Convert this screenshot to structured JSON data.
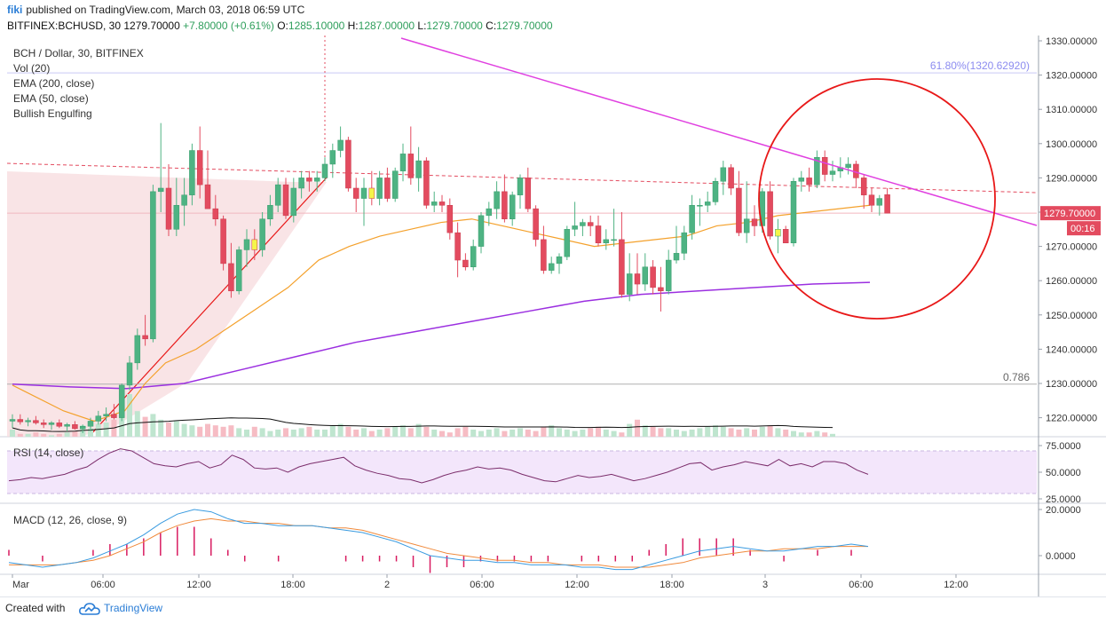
{
  "header": {
    "user": "fiki",
    "published": "published on TradingView.com, March 03, 2018 06:59 UTC",
    "symbol": "BITFINEX:BCHUSD, 30",
    "last": "1279.70000",
    "change": "+7.80000 (+0.61%)",
    "o_label": "O:",
    "o": "1285.10000",
    "h_label": "H:",
    "h": "1287.00000",
    "l_label": "L:",
    "l": "1279.70000",
    "c_label": "C:",
    "c": "1279.70000"
  },
  "legend": {
    "title": "BCH / Dollar, 30, BITFINEX",
    "vol": "Vol (20)",
    "ema200": "EMA (200, close)",
    "ema50": "EMA (50, close)",
    "pattern": "Bullish Engulfing"
  },
  "rsi_label": "RSI (14, close)",
  "macd_label": "MACD (12, 26, close, 9)",
  "footer": {
    "created": "Created with",
    "brand": "TradingView"
  },
  "colors": {
    "up": "#4eb383",
    "down": "#e34b5f",
    "highlight": "#f5f54a",
    "ema50": "#f4a12c",
    "ema200": "#9b2fe0",
    "trendline": "#e040e0",
    "circle": "#e81818",
    "rsi": "#7b2d6b",
    "macd": "#3a9be0",
    "signal": "#f08a3c",
    "fib": "#8c8cf0",
    "price_label_bg": "#e34b5f"
  },
  "chart_data": {
    "type": "candlestick",
    "symbol": "BITFINEX:BCHUSD",
    "timeframe": "30",
    "ylim": [
      1216,
      1331
    ],
    "y_ticks": [
      "1330.00000",
      "1320.00000",
      "1310.00000",
      "1300.00000",
      "1290.00000",
      "1280.00000",
      "1270.00000",
      "1260.00000",
      "1250.00000",
      "1240.00000",
      "1230.00000",
      "1220.00000"
    ],
    "x_ticks": [
      "Mar",
      "06:00",
      "12:00",
      "18:00",
      "2",
      "06:00",
      "12:00",
      "18:00",
      "3",
      "06:00",
      "12:00"
    ],
    "last_price_label": "1279.70000",
    "countdown_label": "00:16",
    "fib_label": "61.80%(1320.62920)",
    "fib_level": 1320.6292,
    "fib_786_label": "0.786",
    "fib_786_level": 1229.8,
    "candles": [
      [
        1219,
        1221,
        1217,
        1219.5
      ],
      [
        1219.5,
        1221,
        1218,
        1218.8
      ],
      [
        1218.8,
        1220,
        1217.5,
        1219.2
      ],
      [
        1219.2,
        1220.5,
        1218,
        1218.5
      ],
      [
        1218.5,
        1219.5,
        1217,
        1218
      ],
      [
        1218,
        1219,
        1216.5,
        1218.5
      ],
      [
        1218.5,
        1219.5,
        1217,
        1217.5
      ],
      [
        1217.5,
        1218.5,
        1216,
        1218
      ],
      [
        1218,
        1219,
        1216.5,
        1216.8
      ],
      [
        1216.8,
        1218,
        1215.5,
        1217.5
      ],
      [
        1217.5,
        1220,
        1216,
        1219
      ],
      [
        1219,
        1222,
        1218,
        1220.5
      ],
      [
        1220.5,
        1223,
        1219,
        1221
      ],
      [
        1221,
        1224,
        1219.5,
        1220
      ],
      [
        1220,
        1230,
        1219,
        1229.5
      ],
      [
        1229.5,
        1238,
        1228,
        1236
      ],
      [
        1236,
        1246,
        1234,
        1244
      ],
      [
        1244,
        1250,
        1241,
        1243
      ],
      [
        1243,
        1288,
        1242,
        1286
      ],
      [
        1286,
        1306,
        1280,
        1287
      ],
      [
        1287,
        1294,
        1273,
        1275
      ],
      [
        1275,
        1290,
        1273,
        1282
      ],
      [
        1282,
        1290,
        1276,
        1285
      ],
      [
        1285,
        1300,
        1282,
        1298
      ],
      [
        1298,
        1305,
        1284,
        1288
      ],
      [
        1288,
        1298,
        1281,
        1281
      ],
      [
        1281,
        1285,
        1276,
        1278
      ],
      [
        1278,
        1279,
        1263,
        1265
      ],
      [
        1265,
        1271,
        1255,
        1257
      ],
      [
        1257,
        1270,
        1256,
        1269
      ],
      [
        1269,
        1275,
        1264,
        1272
      ],
      [
        1272,
        1275,
        1266,
        1269
      ],
      [
        1269,
        1280,
        1267,
        1278
      ],
      [
        1278,
        1285,
        1276,
        1282
      ],
      [
        1282,
        1290,
        1280,
        1288
      ],
      [
        1288,
        1290,
        1278,
        1279
      ],
      [
        1279,
        1290,
        1277,
        1287
      ],
      [
        1287,
        1292,
        1284,
        1290
      ],
      [
        1290,
        1292,
        1286,
        1289
      ],
      [
        1289,
        1292,
        1286,
        1290
      ],
      [
        1290,
        1296,
        1289,
        1294
      ],
      [
        1294,
        1300,
        1290,
        1298
      ],
      [
        1298,
        1305,
        1296,
        1301
      ],
      [
        1301,
        1302,
        1286,
        1287
      ],
      [
        1287,
        1290,
        1280,
        1284
      ],
      [
        1284,
        1290,
        1276,
        1287
      ],
      [
        1287,
        1292,
        1282,
        1284
      ],
      [
        1284,
        1292,
        1282,
        1290
      ],
      [
        1290,
        1293,
        1283,
        1284
      ],
      [
        1284,
        1293,
        1283,
        1292
      ],
      [
        1292,
        1300,
        1289,
        1297
      ],
      [
        1297,
        1305,
        1288,
        1290
      ],
      [
        1290,
        1299,
        1286,
        1295
      ],
      [
        1295,
        1296,
        1281,
        1282
      ],
      [
        1282,
        1286,
        1280,
        1283
      ],
      [
        1283,
        1285,
        1280,
        1282
      ],
      [
        1282,
        1284,
        1272,
        1274
      ],
      [
        1274,
        1277,
        1261,
        1266
      ],
      [
        1266,
        1268,
        1263,
        1264
      ],
      [
        1264,
        1272,
        1263,
        1270
      ],
      [
        1270,
        1280,
        1268,
        1279
      ],
      [
        1279,
        1283,
        1276,
        1281
      ],
      [
        1281,
        1289,
        1278,
        1286
      ],
      [
        1286,
        1291,
        1277,
        1278
      ],
      [
        1278,
        1286,
        1276,
        1285
      ],
      [
        1285,
        1291,
        1281,
        1290
      ],
      [
        1290,
        1293,
        1280,
        1281
      ],
      [
        1281,
        1282,
        1270,
        1272
      ],
      [
        1272,
        1276,
        1262,
        1263
      ],
      [
        1263,
        1267,
        1262,
        1265
      ],
      [
        1265,
        1268,
        1262,
        1267
      ],
      [
        1267,
        1276,
        1266,
        1275
      ],
      [
        1275,
        1283,
        1273,
        1276
      ],
      [
        1276,
        1278,
        1273,
        1277
      ],
      [
        1277,
        1279,
        1273,
        1276
      ],
      [
        1276,
        1279,
        1270,
        1271
      ],
      [
        1271,
        1275,
        1269,
        1272
      ],
      [
        1272,
        1281,
        1270,
        1272
      ],
      [
        1272,
        1280,
        1255,
        1256
      ],
      [
        1256,
        1268,
        1254,
        1262
      ],
      [
        1262,
        1268,
        1256,
        1259
      ],
      [
        1259,
        1268,
        1257,
        1264
      ],
      [
        1264,
        1266,
        1256,
        1258
      ],
      [
        1258,
        1264,
        1251,
        1257
      ],
      [
        1257,
        1269,
        1256,
        1266
      ],
      [
        1266,
        1276,
        1265,
        1268
      ],
      [
        1268,
        1276,
        1266,
        1274
      ],
      [
        1274,
        1285,
        1272,
        1282
      ],
      [
        1282,
        1284,
        1276,
        1282
      ],
      [
        1282,
        1286,
        1280,
        1283
      ],
      [
        1283,
        1290,
        1282,
        1289
      ],
      [
        1289,
        1295,
        1285,
        1293
      ],
      [
        1293,
        1294,
        1285,
        1287
      ],
      [
        1287,
        1292,
        1273,
        1274
      ],
      [
        1274,
        1289,
        1271,
        1278
      ],
      [
        1278,
        1282,
        1273,
        1276
      ],
      [
        1276,
        1287,
        1274,
        1286
      ],
      [
        1286,
        1289,
        1272,
        1273
      ],
      [
        1273,
        1278,
        1268,
        1275
      ],
      [
        1275,
        1276,
        1271,
        1271
      ],
      [
        1271,
        1290,
        1270,
        1289
      ],
      [
        1289,
        1292,
        1286,
        1290
      ],
      [
        1290,
        1293,
        1286,
        1288
      ],
      [
        1288,
        1298,
        1287,
        1296
      ],
      [
        1296,
        1298,
        1289,
        1291
      ],
      [
        1291,
        1295,
        1289,
        1292
      ],
      [
        1292,
        1296,
        1290,
        1293
      ],
      [
        1293,
        1296,
        1291,
        1294
      ],
      [
        1294,
        1295,
        1287,
        1290
      ],
      [
        1290,
        1291,
        1281,
        1285
      ],
      [
        1285,
        1287,
        1280,
        1282
      ],
      [
        1282,
        1285,
        1279,
        1284
      ],
      [
        1285.1,
        1287,
        1279.7,
        1279.7
      ]
    ],
    "highlighted_candle_indices": [
      31,
      46,
      98
    ],
    "ema50": [
      [
        0,
        1229.5
      ],
      [
        10,
        1222
      ],
      [
        16,
        1219
      ],
      [
        22,
        1222
      ],
      [
        26,
        1230
      ],
      [
        30,
        1236
      ],
      [
        36,
        1240
      ],
      [
        42,
        1246
      ],
      [
        48,
        1252
      ],
      [
        54,
        1258
      ],
      [
        60,
        1266
      ],
      [
        66,
        1270
      ],
      [
        72,
        1273
      ],
      [
        78,
        1275
      ],
      [
        84,
        1277
      ],
      [
        90,
        1278
      ],
      [
        96,
        1276
      ],
      [
        102,
        1274
      ],
      [
        108,
        1272
      ],
      [
        114,
        1270
      ],
      [
        120,
        1271
      ],
      [
        126,
        1272
      ],
      [
        132,
        1273
      ],
      [
        138,
        1276
      ],
      [
        144,
        1277
      ],
      [
        150,
        1279
      ],
      [
        156,
        1280
      ],
      [
        162,
        1281
      ],
      [
        168,
        1282
      ]
    ],
    "ema200": [
      [
        0,
        1229.8
      ],
      [
        20,
        1229
      ],
      [
        40,
        1228.5
      ],
      [
        60,
        1230
      ],
      [
        80,
        1234
      ],
      [
        100,
        1238
      ],
      [
        120,
        1242
      ],
      [
        140,
        1245
      ],
      [
        160,
        1248
      ],
      [
        180,
        1251
      ],
      [
        200,
        1254
      ],
      [
        220,
        1256
      ],
      [
        240,
        1257
      ],
      [
        260,
        1258
      ],
      [
        280,
        1259
      ],
      [
        300,
        1259.5
      ]
    ],
    "volume": [
      5,
      2,
      2,
      3,
      2,
      1,
      2,
      3,
      4,
      8,
      6,
      9,
      10,
      12,
      28,
      30,
      18,
      14,
      16,
      12,
      10,
      11,
      9,
      8,
      7,
      9,
      8,
      7,
      8,
      6,
      5,
      7,
      6,
      4,
      5,
      6,
      5,
      6,
      7,
      5,
      5,
      8,
      9,
      7,
      5,
      6,
      4,
      5,
      6,
      7,
      8,
      6,
      9,
      7,
      5,
      4,
      3,
      6,
      7,
      5,
      4,
      5,
      6,
      4,
      5,
      6,
      5,
      4,
      7,
      8,
      6,
      5,
      4,
      5,
      6,
      7,
      5,
      4,
      3,
      9,
      12,
      8,
      7,
      6,
      6,
      5,
      4,
      5,
      6,
      7,
      8,
      7,
      6,
      5,
      6,
      5,
      7,
      8,
      6,
      5,
      4,
      3,
      3,
      4,
      3,
      2
    ],
    "rsi": [
      42,
      43,
      45,
      44,
      46,
      48,
      52,
      55,
      62,
      68,
      72,
      70,
      64,
      58,
      56,
      55,
      58,
      60,
      54,
      57,
      66,
      62,
      54,
      53,
      54,
      50,
      55,
      58,
      60,
      62,
      64,
      56,
      52,
      49,
      47,
      44,
      43,
      40,
      43,
      47,
      50,
      52,
      55,
      53,
      54,
      52,
      48,
      45,
      42,
      41,
      44,
      47,
      45,
      46,
      48,
      45,
      42,
      44,
      47,
      50,
      54,
      58,
      59,
      52,
      55,
      57,
      60,
      58,
      56,
      62,
      56,
      58,
      55,
      60,
      60,
      58,
      52,
      48
    ],
    "macd": [
      -3,
      -4,
      -5,
      -4,
      -3,
      -1,
      2,
      5,
      9,
      14,
      18,
      20,
      19,
      16,
      14,
      14,
      13,
      13,
      13,
      12,
      11,
      10,
      8,
      6,
      3,
      0,
      -1,
      -2,
      -2,
      -3,
      -3,
      -4,
      -4,
      -4,
      -5,
      -5,
      -6,
      -6,
      -4,
      -2,
      0,
      2,
      3,
      4,
      3,
      2,
      2,
      3,
      4,
      4,
      5,
      4
    ],
    "signal": [
      -4,
      -4,
      -4,
      -4,
      -3,
      -2,
      0,
      3,
      6,
      10,
      13,
      15,
      16,
      15,
      15,
      14,
      14,
      13,
      13,
      12,
      12,
      11,
      9,
      7,
      5,
      3,
      1,
      0,
      -1,
      -2,
      -2,
      -3,
      -3,
      -4,
      -4,
      -4,
      -5,
      -5,
      -5,
      -4,
      -3,
      -1,
      0,
      1,
      2,
      2,
      3,
      3,
      3,
      4,
      4,
      4
    ],
    "rsi_ticks": [
      "75.0000",
      "50.0000",
      "25.0000"
    ],
    "macd_ticks": [
      "20.0000",
      "0.0000"
    ]
  }
}
